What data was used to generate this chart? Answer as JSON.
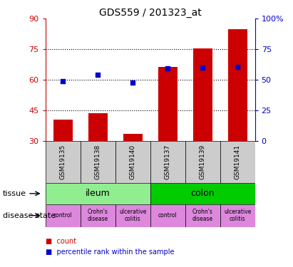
{
  "title": "GDS559 / 201323_at",
  "samples": [
    "GSM19135",
    "GSM19138",
    "GSM19140",
    "GSM19137",
    "GSM19139",
    "GSM19141"
  ],
  "bar_values": [
    40.5,
    43.5,
    33.5,
    66.5,
    75.5,
    85.0
  ],
  "bar_bottom": 30,
  "dot_values_left": [
    59.5,
    62.5,
    58.5,
    65.5,
    66.0,
    66.5
  ],
  "bar_color": "#cc0000",
  "dot_color": "#0000cc",
  "left_ylim": [
    30,
    90
  ],
  "right_ylim": [
    0,
    100
  ],
  "left_yticks": [
    30,
    45,
    60,
    75,
    90
  ],
  "right_yticks": [
    0,
    25,
    50,
    75,
    100
  ],
  "right_yticklabels": [
    "0",
    "25",
    "50",
    "75",
    "100%"
  ],
  "hlines": [
    45,
    60,
    75
  ],
  "tissue_groups": [
    {
      "label": "ileum",
      "start": 0,
      "end": 3,
      "color": "#90EE90"
    },
    {
      "label": "colon",
      "start": 3,
      "end": 6,
      "color": "#00CC00"
    }
  ],
  "disease_groups": [
    {
      "label": "control",
      "start": 0,
      "end": 1,
      "color": "#DD88DD"
    },
    {
      "label": "Crohn's\ndisease",
      "start": 1,
      "end": 2,
      "color": "#DD88DD"
    },
    {
      "label": "ulcerative\ncolitis",
      "start": 2,
      "end": 3,
      "color": "#DD88DD"
    },
    {
      "label": "control",
      "start": 3,
      "end": 4,
      "color": "#DD88DD"
    },
    {
      "label": "Crohn's\ndisease",
      "start": 4,
      "end": 5,
      "color": "#DD88DD"
    },
    {
      "label": "ulcerative\ncolitis",
      "start": 5,
      "end": 6,
      "color": "#DD88DD"
    }
  ],
  "legend_count_label": "count",
  "legend_pct_label": "percentile rank within the sample",
  "tissue_label": "tissue",
  "disease_label": "disease state",
  "bar_width": 0.55,
  "background_color": "#ffffff",
  "plot_bg": "#ffffff",
  "tick_label_color_left": "#cc0000",
  "tick_label_color_right": "#0000cc",
  "sample_box_color": "#cccccc"
}
